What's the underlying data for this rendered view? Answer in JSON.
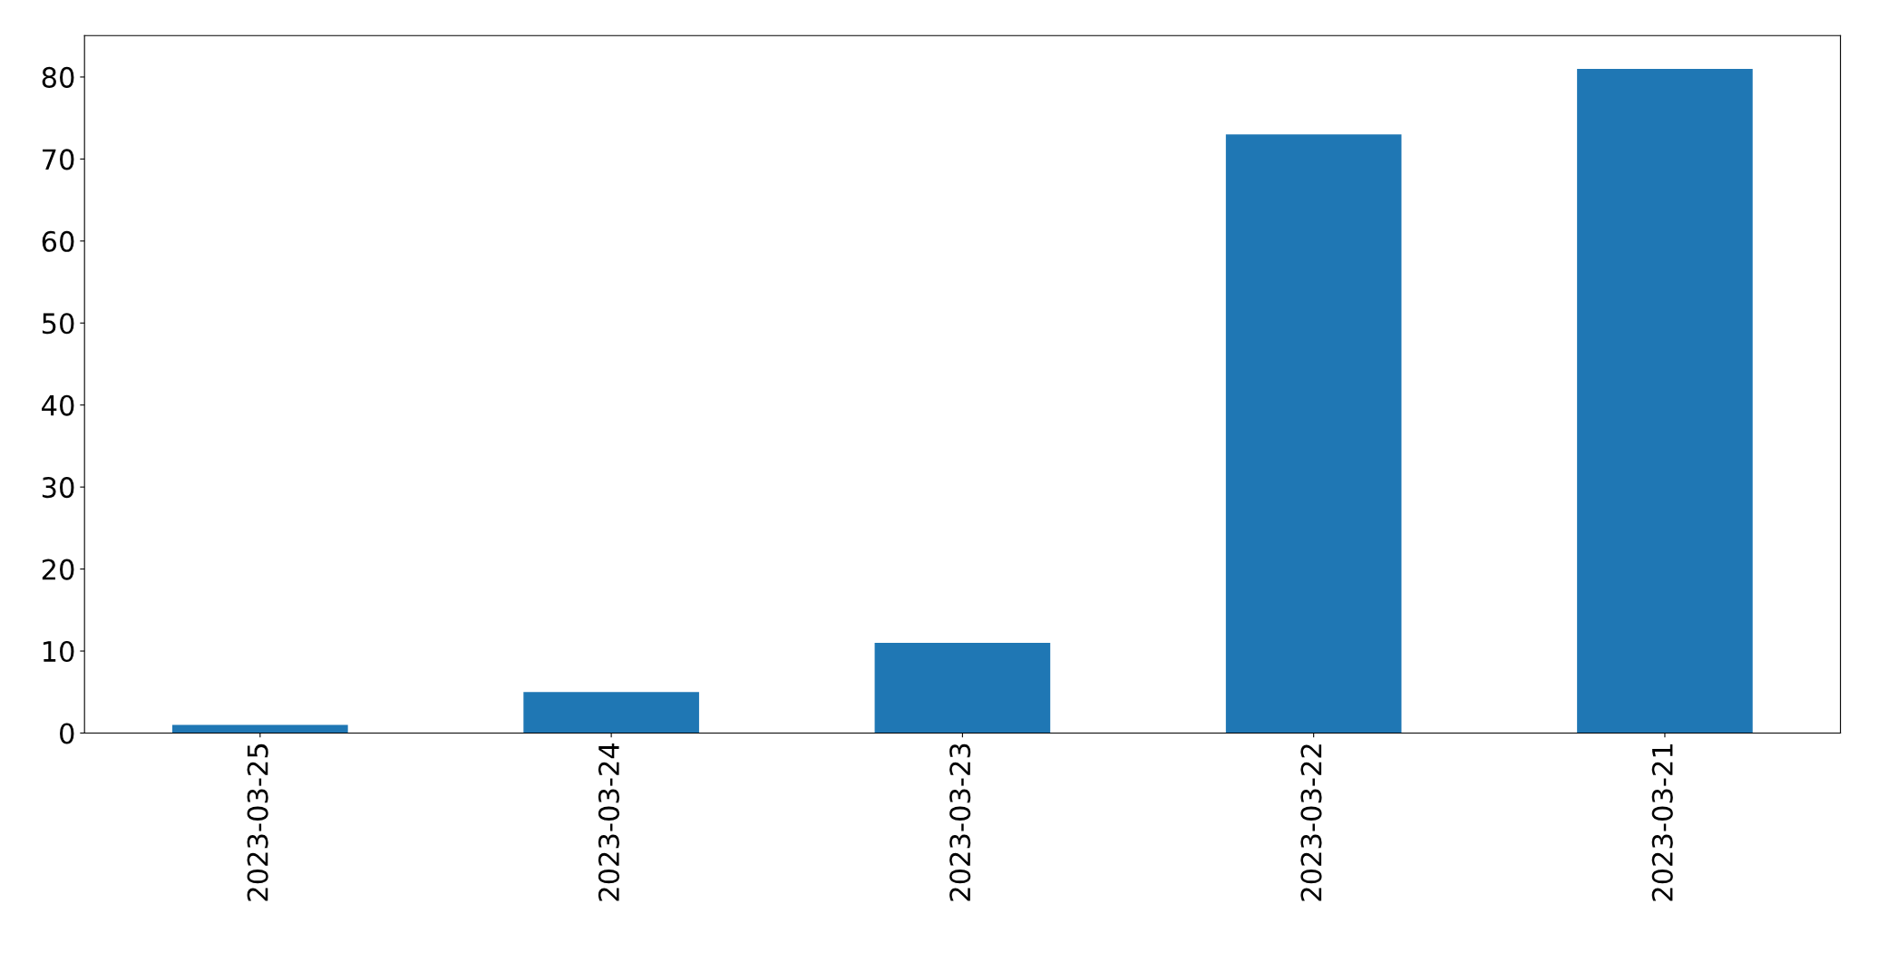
{
  "chart_data": {
    "type": "bar",
    "categories": [
      "2023-03-25",
      "2023-03-24",
      "2023-03-23",
      "2023-03-22",
      "2023-03-21"
    ],
    "values": [
      1,
      5,
      11,
      73,
      81
    ],
    "color": "#1f77b4",
    "ylim": [
      0,
      85.05
    ],
    "yticks": [
      0,
      10,
      20,
      30,
      40,
      50,
      60,
      70,
      80
    ],
    "grid": false,
    "legend": false
  }
}
